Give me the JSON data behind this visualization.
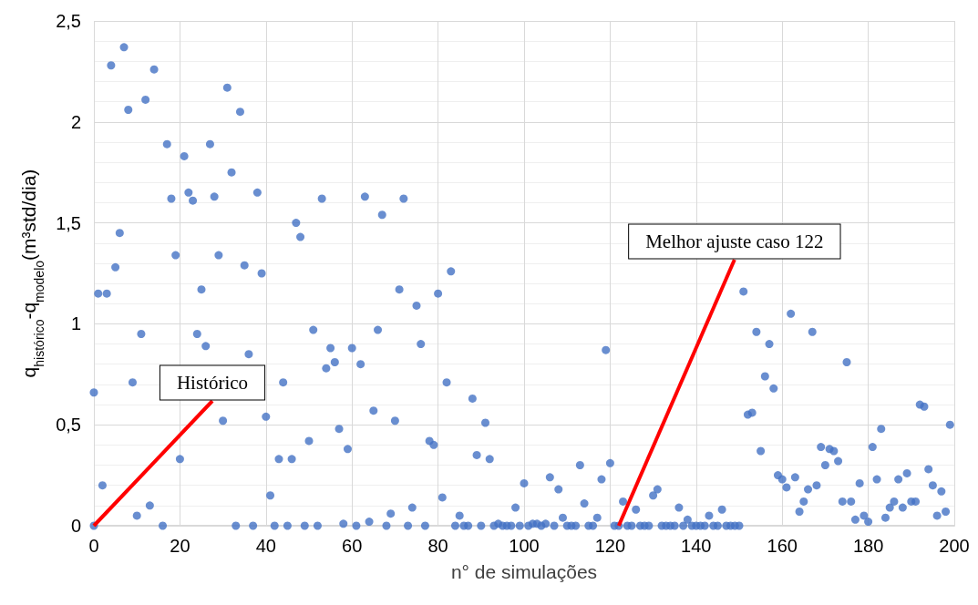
{
  "chart_data": {
    "type": "scatter",
    "xlabel": "n° de simulações",
    "ylabel": "q$_{histórico}$-q$_{modelo}$(m³std/dia)",
    "xlim": [
      0,
      200
    ],
    "xticks": [
      0,
      20,
      40,
      60,
      80,
      100,
      120,
      140,
      160,
      180,
      200
    ],
    "ylim": [
      0,
      2.5
    ],
    "yticks": [
      0,
      {
        "value": 0.5,
        "label": "0,5"
      },
      1,
      {
        "value": 1.5,
        "label": "1,5"
      },
      2,
      {
        "value": 2.5,
        "label": "2,5"
      }
    ],
    "grid": true,
    "marker": "circle",
    "annotations": [
      {
        "text": "Histórico",
        "x": 0,
        "y": 0
      },
      {
        "text": "Melhor ajuste caso 122",
        "x": 122,
        "y": 0
      }
    ],
    "series": [
      {
        "color": "#4472c4",
        "x": [
          0,
          0,
          1,
          2,
          3,
          4,
          5,
          6,
          7,
          8,
          9,
          10,
          11,
          12,
          13,
          14,
          16,
          17,
          18,
          19,
          20,
          21,
          22,
          23,
          24,
          25,
          26,
          27,
          28,
          29,
          30,
          31,
          32,
          33,
          34,
          35,
          36,
          37,
          38,
          39,
          40,
          41,
          42,
          43,
          44,
          45,
          46,
          47,
          48,
          49,
          50,
          51,
          52,
          53,
          54,
          55,
          56,
          57,
          58,
          59,
          60,
          61,
          62,
          63,
          64,
          65,
          66,
          67,
          68,
          69,
          70,
          71,
          72,
          73,
          74,
          75,
          76,
          77,
          78,
          79,
          80,
          81,
          82,
          83,
          84,
          85,
          86,
          87,
          88,
          89,
          90,
          91,
          92,
          93,
          94,
          95,
          96,
          97,
          98,
          99,
          100,
          101,
          102,
          103,
          104,
          105,
          106,
          107,
          108,
          109,
          110,
          111,
          112,
          113,
          114,
          115,
          116,
          117,
          118,
          119,
          120,
          121,
          122,
          123,
          124,
          125,
          126,
          127,
          128,
          129,
          130,
          131,
          132,
          133,
          134,
          135,
          136,
          137,
          138,
          139,
          140,
          141,
          142,
          143,
          144,
          145,
          146,
          147,
          148,
          149,
          150,
          151,
          152,
          153,
          154,
          155,
          156,
          157,
          158,
          159,
          160,
          161,
          162,
          163,
          164,
          165,
          166,
          167,
          168,
          169,
          170,
          171,
          172,
          173,
          174,
          175,
          176,
          177,
          178,
          179,
          180,
          181,
          182,
          183,
          184,
          185,
          186,
          187,
          188,
          189,
          190,
          191,
          192,
          193,
          194,
          195,
          196,
          197,
          198,
          199
        ],
        "values": [
          0,
          0.66,
          1.15,
          0.2,
          1.15,
          2.28,
          1.28,
          1.45,
          2.37,
          2.06,
          0.71,
          0.05,
          0.95,
          2.11,
          0.1,
          2.26,
          0,
          1.89,
          1.62,
          1.34,
          0.33,
          1.83,
          1.65,
          1.61,
          0.95,
          1.17,
          0.89,
          1.89,
          1.63,
          1.34,
          0.52,
          2.17,
          1.75,
          0,
          2.05,
          1.29,
          0.85,
          0,
          1.65,
          1.25,
          0.54,
          0.15,
          0,
          0.33,
          0.71,
          0,
          0.33,
          1.5,
          1.43,
          0,
          0.42,
          0.97,
          0,
          1.62,
          0.78,
          0.88,
          0.81,
          0.48,
          0.01,
          0.38,
          0.88,
          0,
          0.8,
          1.63,
          0.02,
          0.57,
          0.97,
          1.54,
          0,
          0.06,
          0.52,
          1.17,
          1.62,
          0,
          0.09,
          1.09,
          0.9,
          0,
          0.42,
          0.4,
          1.15,
          0.14,
          0.71,
          1.26,
          0,
          0.05,
          0,
          0,
          0.63,
          0.35,
          0,
          0.51,
          0.33,
          0,
          0.01,
          0,
          0,
          0,
          0.09,
          0,
          0.21,
          0,
          0.01,
          0.01,
          0,
          0.01,
          0.24,
          0,
          0.18,
          0.04,
          0,
          0,
          0,
          0.3,
          0.11,
          0,
          0,
          0.04,
          0.23,
          0.87,
          0.31,
          0,
          0,
          0.12,
          0,
          0,
          0.08,
          0,
          0,
          0,
          0.15,
          0.18,
          0,
          0,
          0,
          0,
          0.09,
          0,
          0.03,
          0,
          0,
          0,
          0,
          0.05,
          0,
          0,
          0.08,
          0,
          0,
          0,
          0,
          1.16,
          0.55,
          0.56,
          0.96,
          0.37,
          0.74,
          0.9,
          0.68,
          0.25,
          0.23,
          0.19,
          1.05,
          0.24,
          0.07,
          0.12,
          0.18,
          0.96,
          0.2,
          0.39,
          0.3,
          0.38,
          0.37,
          0.32,
          0.12,
          0.81,
          0.12,
          0.03,
          0.21,
          0.05,
          0.02,
          0.39,
          0.23,
          0.48,
          0.04,
          0.09,
          0.12,
          0.23,
          0.09,
          0.26,
          0.12,
          0.12,
          0.6,
          0.59,
          0.28,
          0.2,
          0.05,
          0.17,
          0.07,
          0.5
        ]
      }
    ]
  }
}
